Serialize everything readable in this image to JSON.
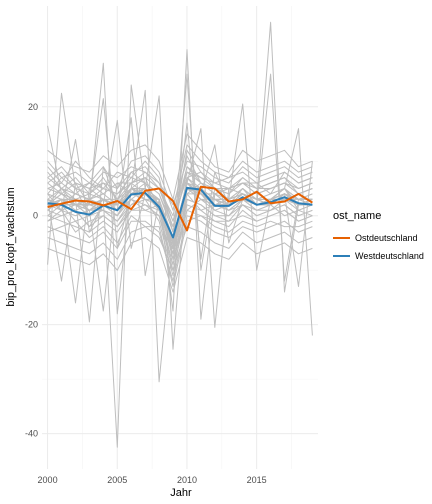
{
  "chart_data": {
    "type": "line",
    "xlabel": "Jahr",
    "ylabel": "bip_pro_kopf_wachstum",
    "xlim": [
      1999.6,
      2019.4
    ],
    "ylim": [
      -46.5,
      38.5
    ],
    "x_ticks": [
      2000,
      2005,
      2010,
      2015
    ],
    "y_ticks": [
      -40,
      -20,
      0,
      20
    ],
    "grid": true,
    "legend": {
      "title": "ost_name",
      "position": "right"
    },
    "background_lines": {
      "color": "#bebebe",
      "x": [
        2000,
        2001,
        2002,
        2003,
        2004,
        2005,
        2006,
        2007,
        2008,
        2009,
        2010,
        2011,
        2012,
        2013,
        2014,
        2015,
        2016,
        2017,
        2018,
        2019
      ],
      "lines": [
        [
          16.5,
          4,
          2,
          1,
          3,
          1,
          5,
          4,
          3,
          -6,
          5,
          4,
          2,
          2,
          4,
          2,
          3,
          4,
          2,
          3
        ],
        [
          -9,
          22.5,
          5,
          0,
          2,
          1,
          4,
          6,
          2,
          -7,
          7,
          5,
          3,
          1,
          3,
          2,
          3,
          5,
          1,
          2
        ],
        [
          3,
          -12,
          6,
          2,
          1,
          0,
          5,
          7,
          1,
          -4,
          4,
          6,
          4,
          2,
          4,
          3,
          2,
          4,
          3,
          2
        ],
        [
          4,
          1,
          14,
          -3,
          2,
          1,
          5,
          3,
          2,
          -6,
          6,
          3,
          2,
          2,
          5,
          2,
          3,
          3,
          2,
          3
        ],
        [
          1,
          3,
          -16,
          5,
          3,
          2,
          4,
          5,
          3,
          -5,
          5,
          4,
          3,
          3,
          4,
          2,
          2,
          4,
          2,
          3
        ],
        [
          2,
          5,
          3,
          -19.5,
          9,
          2,
          6,
          4,
          2,
          -7,
          6,
          5,
          2,
          1,
          3,
          2,
          3,
          5,
          2,
          2
        ],
        [
          3,
          2,
          4,
          3,
          21.5,
          -6,
          4,
          5,
          3,
          -4,
          5,
          4,
          3,
          2,
          4,
          3,
          2,
          4,
          3,
          3
        ],
        [
          2,
          3,
          1,
          2,
          28,
          -18,
          5,
          4,
          2,
          -6,
          6,
          4,
          2,
          2,
          3,
          2,
          3,
          4,
          2,
          2
        ],
        [
          3,
          1,
          2,
          1,
          -17.5,
          6,
          4,
          3,
          2,
          -5,
          5,
          3,
          3,
          2,
          4,
          2,
          2,
          3,
          3,
          3
        ],
        [
          2,
          4,
          3,
          2,
          3,
          -42.5,
          24,
          5,
          3,
          -6,
          5,
          4,
          2,
          2,
          4,
          3,
          3,
          4,
          2,
          3
        ],
        [
          3,
          2,
          3,
          1,
          2,
          17.5,
          -6,
          4,
          2,
          -5,
          6,
          4,
          3,
          2,
          3,
          2,
          3,
          4,
          3,
          2
        ],
        [
          4,
          3,
          2,
          2,
          3,
          1,
          18,
          -11,
          3,
          -6,
          5,
          5,
          2,
          3,
          4,
          2,
          2,
          4,
          2,
          3
        ],
        [
          2,
          3,
          3,
          2,
          3,
          2,
          5,
          23,
          -30.5,
          -4,
          6,
          4,
          3,
          2,
          4,
          3,
          3,
          3,
          2,
          2
        ],
        [
          3,
          2,
          2,
          3,
          2,
          1,
          4,
          5,
          22,
          -24.5,
          7,
          4,
          2,
          2,
          3,
          2,
          3,
          4,
          3,
          3
        ],
        [
          2,
          3,
          2,
          1,
          3,
          2,
          5,
          4,
          3,
          -17.5,
          30.5,
          -19,
          4,
          2,
          4,
          2,
          3,
          4,
          2,
          2
        ],
        [
          3,
          2,
          3,
          2,
          2,
          1,
          4,
          5,
          2,
          -6,
          26,
          -10,
          5,
          3,
          4,
          3,
          2,
          4,
          3,
          3
        ],
        [
          2,
          4,
          2,
          2,
          3,
          2,
          5,
          4,
          3,
          -5,
          17,
          -8,
          8,
          2,
          3,
          2,
          3,
          5,
          2,
          2
        ],
        [
          3,
          2,
          3,
          1,
          2,
          2,
          4,
          5,
          2,
          -7,
          6,
          16,
          -20.5,
          5,
          4,
          2,
          3,
          4,
          3,
          3
        ],
        [
          2,
          3,
          2,
          2,
          3,
          1,
          5,
          4,
          3,
          -6,
          5,
          4,
          13,
          -5,
          3,
          2,
          2,
          4,
          2,
          2
        ],
        [
          3,
          2,
          2,
          2,
          2,
          2,
          4,
          5,
          2,
          -5,
          6,
          4,
          2,
          3,
          20.5,
          -10,
          3,
          4,
          3,
          3
        ],
        [
          2,
          3,
          3,
          1,
          3,
          1,
          5,
          4,
          3,
          -6,
          5,
          5,
          3,
          2,
          4,
          3,
          35.5,
          -14,
          2,
          2
        ],
        [
          3,
          2,
          2,
          3,
          2,
          2,
          4,
          5,
          2,
          -4,
          6,
          4,
          2,
          2,
          3,
          2,
          26,
          -12,
          3,
          3
        ],
        [
          2,
          3,
          2,
          2,
          3,
          1,
          5,
          4,
          3,
          -5,
          5,
          4,
          3,
          3,
          4,
          2,
          3,
          5,
          16,
          -22
        ],
        [
          3,
          2,
          3,
          2,
          2,
          2,
          4,
          5,
          2,
          -6,
          6,
          4,
          2,
          2,
          4,
          3,
          2,
          4,
          -13,
          10
        ],
        [
          10,
          7,
          8,
          6,
          9,
          5,
          10,
          11,
          8,
          1,
          13,
          10,
          8,
          7,
          10,
          8,
          9,
          10,
          8,
          9
        ],
        [
          -4,
          -5,
          -6,
          -7,
          -5,
          -8,
          -3,
          -2,
          -4,
          -10,
          -2,
          -3,
          -5,
          -6,
          -3,
          -5,
          -4,
          -3,
          -5,
          -4
        ],
        [
          7,
          9,
          6,
          5,
          8,
          7,
          9,
          8,
          6,
          2,
          10,
          9,
          7,
          6,
          9,
          7,
          8,
          9,
          7,
          8
        ],
        [
          -2,
          -3,
          -4,
          -5,
          -3,
          -6,
          -1,
          -1,
          -3,
          -12,
          0,
          -1,
          -3,
          -4,
          -2,
          -3,
          -2,
          -1,
          -3,
          -2
        ],
        [
          12,
          10,
          9,
          8,
          11,
          9,
          12,
          13,
          10,
          3,
          15,
          12,
          9,
          8,
          12,
          10,
          11,
          12,
          9,
          10
        ],
        [
          -6,
          -7,
          -8,
          -9,
          -7,
          -10,
          -5,
          -4,
          -6,
          -14,
          -4,
          -5,
          -7,
          -8,
          -5,
          -7,
          -6,
          -5,
          -7,
          -6
        ],
        [
          5,
          6,
          4,
          3,
          5,
          4,
          7,
          6,
          4,
          -2,
          8,
          7,
          5,
          4,
          6,
          4,
          5,
          6,
          4,
          5
        ],
        [
          0,
          -1,
          -2,
          -3,
          -1,
          -3,
          1,
          2,
          0,
          -9,
          2,
          1,
          -1,
          -2,
          1,
          -1,
          0,
          1,
          -1,
          0
        ],
        [
          8,
          5,
          7,
          4,
          6,
          3,
          8,
          9,
          6,
          -1,
          9,
          7,
          6,
          5,
          7,
          5,
          6,
          7,
          5,
          6
        ],
        [
          -1,
          1,
          -3,
          -1,
          0,
          -2,
          2,
          3,
          -1,
          -11,
          3,
          2,
          0,
          -1,
          2,
          0,
          1,
          2,
          0,
          1
        ],
        [
          6,
          8,
          5,
          6,
          4,
          6,
          6,
          7,
          5,
          0,
          11,
          6,
          4,
          5,
          6,
          6,
          4,
          8,
          6,
          7
        ],
        [
          1,
          0,
          1,
          -2,
          2,
          0,
          3,
          1,
          2,
          -8,
          1,
          3,
          1,
          0,
          3,
          1,
          2,
          0,
          1,
          0
        ],
        [
          9,
          6,
          10,
          7,
          5,
          8,
          7,
          10,
          7,
          -3,
          12,
          8,
          6,
          7,
          8,
          6,
          7,
          8,
          6,
          7
        ],
        [
          -3,
          -2,
          -1,
          -4,
          -2,
          -5,
          0,
          -2,
          -2,
          -13,
          -1,
          0,
          -2,
          -3,
          -1,
          -2,
          -1,
          -2,
          -2,
          -1
        ],
        [
          4,
          7,
          5,
          4,
          7,
          3,
          6,
          8,
          5,
          -1,
          7,
          8,
          5,
          4,
          7,
          5,
          6,
          7,
          4,
          5
        ],
        [
          2,
          1,
          0,
          1,
          1,
          -1,
          2,
          4,
          1,
          -9,
          4,
          1,
          2,
          1,
          2,
          1,
          1,
          3,
          1,
          2
        ],
        [
          5,
          4,
          6,
          5,
          6,
          5,
          8,
          6,
          4,
          -3,
          9,
          6,
          5,
          5,
          6,
          5,
          5,
          6,
          5,
          6
        ],
        [
          0,
          2,
          -1,
          0,
          1,
          -1,
          3,
          2,
          1,
          -7,
          3,
          2,
          0,
          0,
          2,
          0,
          1,
          2,
          0,
          1
        ],
        [
          7,
          5,
          4,
          6,
          5,
          4,
          6,
          7,
          5,
          -2,
          8,
          6,
          4,
          5,
          6,
          4,
          5,
          6,
          4,
          5
        ],
        [
          -1,
          0,
          1,
          -2,
          0,
          -2,
          1,
          1,
          0,
          -10,
          1,
          0,
          -1,
          -1,
          0,
          -1,
          0,
          1,
          -1,
          0
        ],
        [
          3,
          5,
          2,
          3,
          4,
          2,
          5,
          5,
          3,
          -4,
          6,
          5,
          3,
          3,
          5,
          3,
          4,
          5,
          3,
          4
        ],
        [
          2,
          2,
          3,
          1,
          2,
          0,
          4,
          4,
          2,
          -5,
          5,
          3,
          2,
          2,
          3,
          2,
          3,
          3,
          2,
          3
        ],
        [
          6,
          4,
          3,
          4,
          3,
          3,
          5,
          3,
          3,
          -8,
          6,
          4,
          4,
          3,
          5,
          3,
          3,
          5,
          3,
          3
        ],
        [
          1,
          3,
          2,
          0,
          3,
          1,
          3,
          5,
          1,
          -6,
          4,
          4,
          1,
          2,
          3,
          1,
          2,
          4,
          2,
          2
        ]
      ]
    },
    "x": [
      2000,
      2001,
      2002,
      2003,
      2004,
      2005,
      2006,
      2007,
      2008,
      2009,
      2010,
      2011,
      2012,
      2013,
      2014,
      2015,
      2016,
      2017,
      2018,
      2019
    ],
    "series": [
      {
        "name": "Westdeutschland",
        "color": "#2c7fb8",
        "values": [
          2.3,
          2.0,
          0.7,
          0.2,
          1.9,
          1.0,
          3.9,
          4.2,
          1.6,
          -4.0,
          5.1,
          4.8,
          1.8,
          1.8,
          3.4,
          2.0,
          2.5,
          3.4,
          2.3,
          2.0
        ]
      },
      {
        "name": "Ostdeutschland",
        "color": "#e66101",
        "values": [
          1.6,
          2.2,
          2.8,
          2.6,
          1.9,
          2.7,
          1.2,
          4.6,
          5.0,
          2.7,
          -2.7,
          5.3,
          5.0,
          2.6,
          3.0,
          4.4,
          2.3,
          2.6,
          4.0,
          2.4
        ]
      }
    ]
  }
}
